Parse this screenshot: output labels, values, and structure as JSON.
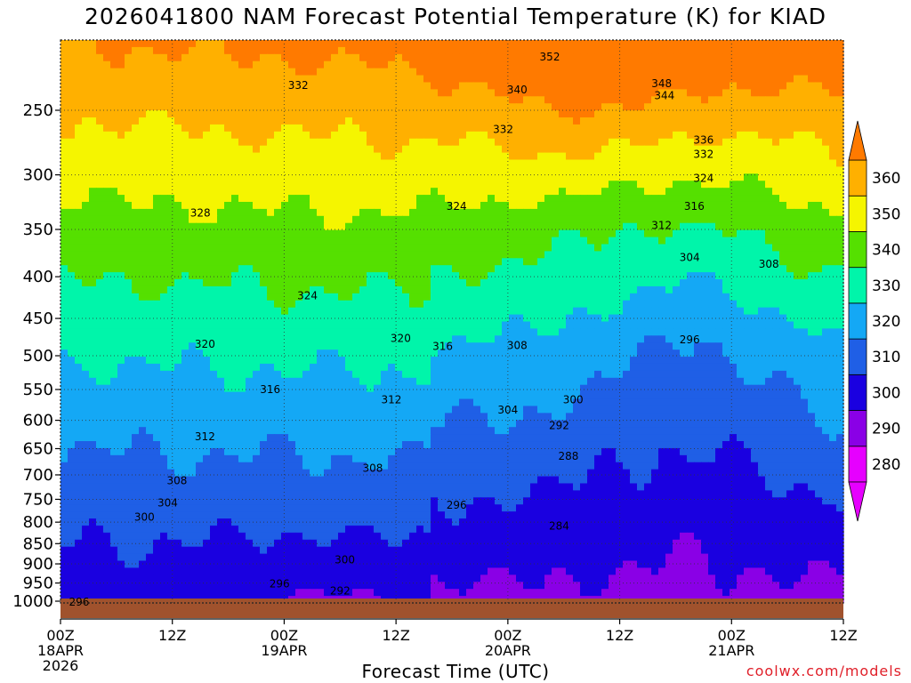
{
  "title": "2026041800 NAM Forecast Potential Temperature (K) for KIAD",
  "credit": "coolwx.com/models",
  "chart_data": {
    "type": "contour",
    "title": "2026041800 NAM Forecast Potential Temperature (K) for KIAD",
    "xlabel": "Forecast Time (UTC)",
    "ylabel": "",
    "x_ticks": [
      {
        "hours": 0,
        "lines": [
          "00Z",
          "18APR",
          "2026"
        ]
      },
      {
        "hours": 12,
        "lines": [
          "12Z"
        ]
      },
      {
        "hours": 24,
        "lines": [
          "00Z",
          "19APR"
        ]
      },
      {
        "hours": 36,
        "lines": [
          "12Z"
        ]
      },
      {
        "hours": 48,
        "lines": [
          "00Z",
          "20APR"
        ]
      },
      {
        "hours": 60,
        "lines": [
          "12Z"
        ]
      },
      {
        "hours": 72,
        "lines": [
          "00Z",
          "21APR"
        ]
      },
      {
        "hours": 84,
        "lines": [
          "12Z"
        ]
      }
    ],
    "xlim": [
      0,
      84
    ],
    "y_ticks": [
      250,
      300,
      350,
      400,
      450,
      500,
      550,
      600,
      650,
      700,
      750,
      800,
      850,
      900,
      950,
      1000
    ],
    "ylim": [
      200,
      1000
    ],
    "y_scale": "log",
    "grid": true,
    "colorbar": {
      "ticks": [
        280,
        290,
        300,
        310,
        320,
        330,
        340,
        350,
        360
      ],
      "colors": [
        "#e600ff",
        "#8a00e6",
        "#1a00e0",
        "#1f5fe6",
        "#14a8f5",
        "#00f5aa",
        "#55e000",
        "#f5f500",
        "#ffb000",
        "#ff7a00"
      ],
      "range": [
        275,
        365
      ]
    },
    "terrain_color": "#a0522d",
    "contour_labels": [
      {
        "text": "352",
        "hours": 52.5,
        "p": 215
      },
      {
        "text": "348",
        "hours": 64.5,
        "p": 232
      },
      {
        "text": "344",
        "hours": 64.8,
        "p": 240
      },
      {
        "text": "340",
        "hours": 49.0,
        "p": 236
      },
      {
        "text": "332",
        "hours": 25.5,
        "p": 233
      },
      {
        "text": "332",
        "hours": 47.5,
        "p": 264
      },
      {
        "text": "336",
        "hours": 69.0,
        "p": 272
      },
      {
        "text": "332",
        "hours": 69.0,
        "p": 283
      },
      {
        "text": "328",
        "hours": 15.0,
        "p": 334
      },
      {
        "text": "324",
        "hours": 42.5,
        "p": 328
      },
      {
        "text": "324",
        "hours": 69.0,
        "p": 303
      },
      {
        "text": "316",
        "hours": 68.0,
        "p": 328
      },
      {
        "text": "312",
        "hours": 64.5,
        "p": 346
      },
      {
        "text": "324",
        "hours": 26.5,
        "p": 422
      },
      {
        "text": "320",
        "hours": 15.5,
        "p": 484
      },
      {
        "text": "320",
        "hours": 36.5,
        "p": 476
      },
      {
        "text": "316",
        "hours": 41.0,
        "p": 487
      },
      {
        "text": "308",
        "hours": 49.0,
        "p": 486
      },
      {
        "text": "304",
        "hours": 67.5,
        "p": 379
      },
      {
        "text": "308",
        "hours": 76.0,
        "p": 386
      },
      {
        "text": "296",
        "hours": 67.5,
        "p": 478
      },
      {
        "text": "316",
        "hours": 22.5,
        "p": 550
      },
      {
        "text": "312",
        "hours": 35.5,
        "p": 566
      },
      {
        "text": "304",
        "hours": 48.0,
        "p": 583
      },
      {
        "text": "300",
        "hours": 55.0,
        "p": 566
      },
      {
        "text": "292",
        "hours": 53.5,
        "p": 609
      },
      {
        "text": "312",
        "hours": 15.5,
        "p": 628
      },
      {
        "text": "288",
        "hours": 54.5,
        "p": 664
      },
      {
        "text": "308",
        "hours": 33.5,
        "p": 687
      },
      {
        "text": "308",
        "hours": 12.5,
        "p": 712
      },
      {
        "text": "304",
        "hours": 11.5,
        "p": 758
      },
      {
        "text": "296",
        "hours": 42.5,
        "p": 762
      },
      {
        "text": "300",
        "hours": 9.0,
        "p": 789
      },
      {
        "text": "284",
        "hours": 53.5,
        "p": 809
      },
      {
        "text": "300",
        "hours": 30.5,
        "p": 890
      },
      {
        "text": "296",
        "hours": 23.5,
        "p": 952
      },
      {
        "text": "292",
        "hours": 30.0,
        "p": 972
      },
      {
        "text": "296",
        "hours": 2.0,
        "p": 1003
      }
    ]
  }
}
